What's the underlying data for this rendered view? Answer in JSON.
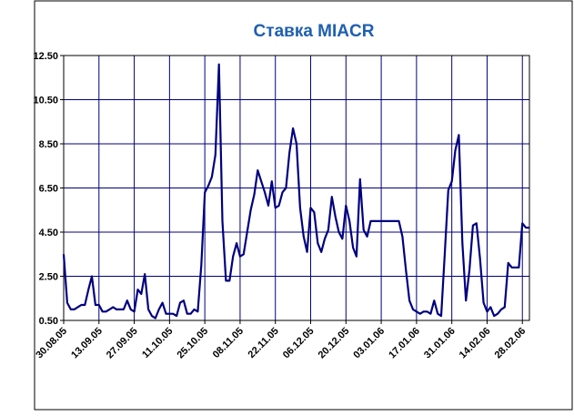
{
  "chart_data": {
    "type": "line",
    "title": "Ставка MIACR",
    "categories": [
      "30.08.05",
      null,
      null,
      null,
      null,
      null,
      null,
      null,
      null,
      null,
      "13.09.05",
      null,
      null,
      null,
      null,
      null,
      null,
      null,
      null,
      null,
      "27.09.05",
      null,
      null,
      null,
      null,
      null,
      null,
      null,
      null,
      null,
      "11.10.05",
      null,
      null,
      null,
      null,
      null,
      null,
      null,
      null,
      null,
      "25.10.05",
      null,
      null,
      null,
      null,
      null,
      null,
      null,
      null,
      null,
      "08.11.05",
      null,
      null,
      null,
      null,
      null,
      null,
      null,
      null,
      null,
      "22.11.05",
      null,
      null,
      null,
      null,
      null,
      null,
      null,
      null,
      null,
      "06.12.05",
      null,
      null,
      null,
      null,
      null,
      null,
      null,
      null,
      null,
      "20.12.05",
      null,
      null,
      null,
      null,
      null,
      null,
      null,
      null,
      null,
      "03.01.06",
      null,
      null,
      null,
      null,
      null,
      null,
      null,
      null,
      null,
      "17.01.06",
      null,
      null,
      null,
      null,
      null,
      null,
      null,
      null,
      null,
      "31.01.06",
      null,
      null,
      null,
      null,
      null,
      null,
      null,
      null,
      null,
      "14.02.06",
      null,
      null,
      null,
      null,
      null,
      null,
      null,
      null,
      null,
      "28.02.06",
      null,
      null
    ],
    "series": [
      {
        "color": "#000080",
        "values": [
          3.5,
          1.3,
          1.0,
          1.0,
          1.1,
          1.2,
          1.2,
          1.9,
          2.5,
          1.2,
          1.2,
          0.9,
          0.9,
          1.0,
          1.1,
          1.0,
          1.0,
          1.0,
          1.4,
          1.0,
          0.9,
          1.9,
          1.7,
          2.6,
          1.0,
          0.7,
          0.6,
          1.0,
          1.3,
          0.8,
          0.8,
          0.8,
          0.7,
          1.3,
          1.4,
          0.8,
          0.8,
          1.0,
          0.9,
          3.0,
          6.3,
          6.6,
          7.0,
          8.0,
          12.1,
          5.0,
          2.3,
          2.3,
          3.4,
          4.0,
          3.4,
          3.5,
          4.5,
          5.5,
          6.2,
          7.3,
          6.8,
          6.3,
          5.7,
          6.8,
          5.6,
          5.7,
          6.3,
          6.5,
          8.1,
          9.2,
          8.5,
          5.6,
          4.3,
          3.6,
          5.6,
          5.4,
          4.0,
          3.6,
          4.2,
          4.6,
          6.1,
          5.2,
          4.5,
          4.2,
          5.7,
          5.0,
          3.8,
          3.4,
          6.9,
          4.6,
          4.3,
          5.0,
          5.0,
          5.0,
          5.0,
          5.0,
          5.0,
          5.0,
          5.0,
          5.0,
          4.3,
          2.8,
          1.4,
          1.0,
          0.9,
          0.8,
          0.9,
          0.9,
          0.8,
          1.4,
          0.8,
          0.7,
          3.5,
          6.4,
          6.8,
          8.2,
          8.9,
          4.0,
          1.4,
          2.8,
          4.8,
          4.9,
          3.3,
          1.3,
          0.9,
          1.1,
          0.7,
          0.8,
          1.0,
          1.1,
          3.1,
          2.9,
          2.9,
          2.9,
          4.9,
          4.7,
          4.7
        ]
      }
    ],
    "ylim": [
      0.5,
      12.5
    ],
    "yticks": [
      {
        "value": 0.5,
        "label": "0.50"
      },
      {
        "value": 2.5,
        "label": "2.50"
      },
      {
        "value": 4.5,
        "label": "4.50"
      },
      {
        "value": 6.5,
        "label": "6.50"
      },
      {
        "value": 8.5,
        "label": "8.50"
      },
      {
        "value": 10.5,
        "label": "10.50"
      },
      {
        "value": 12.5,
        "label": "12.50"
      }
    ],
    "grid": true
  }
}
